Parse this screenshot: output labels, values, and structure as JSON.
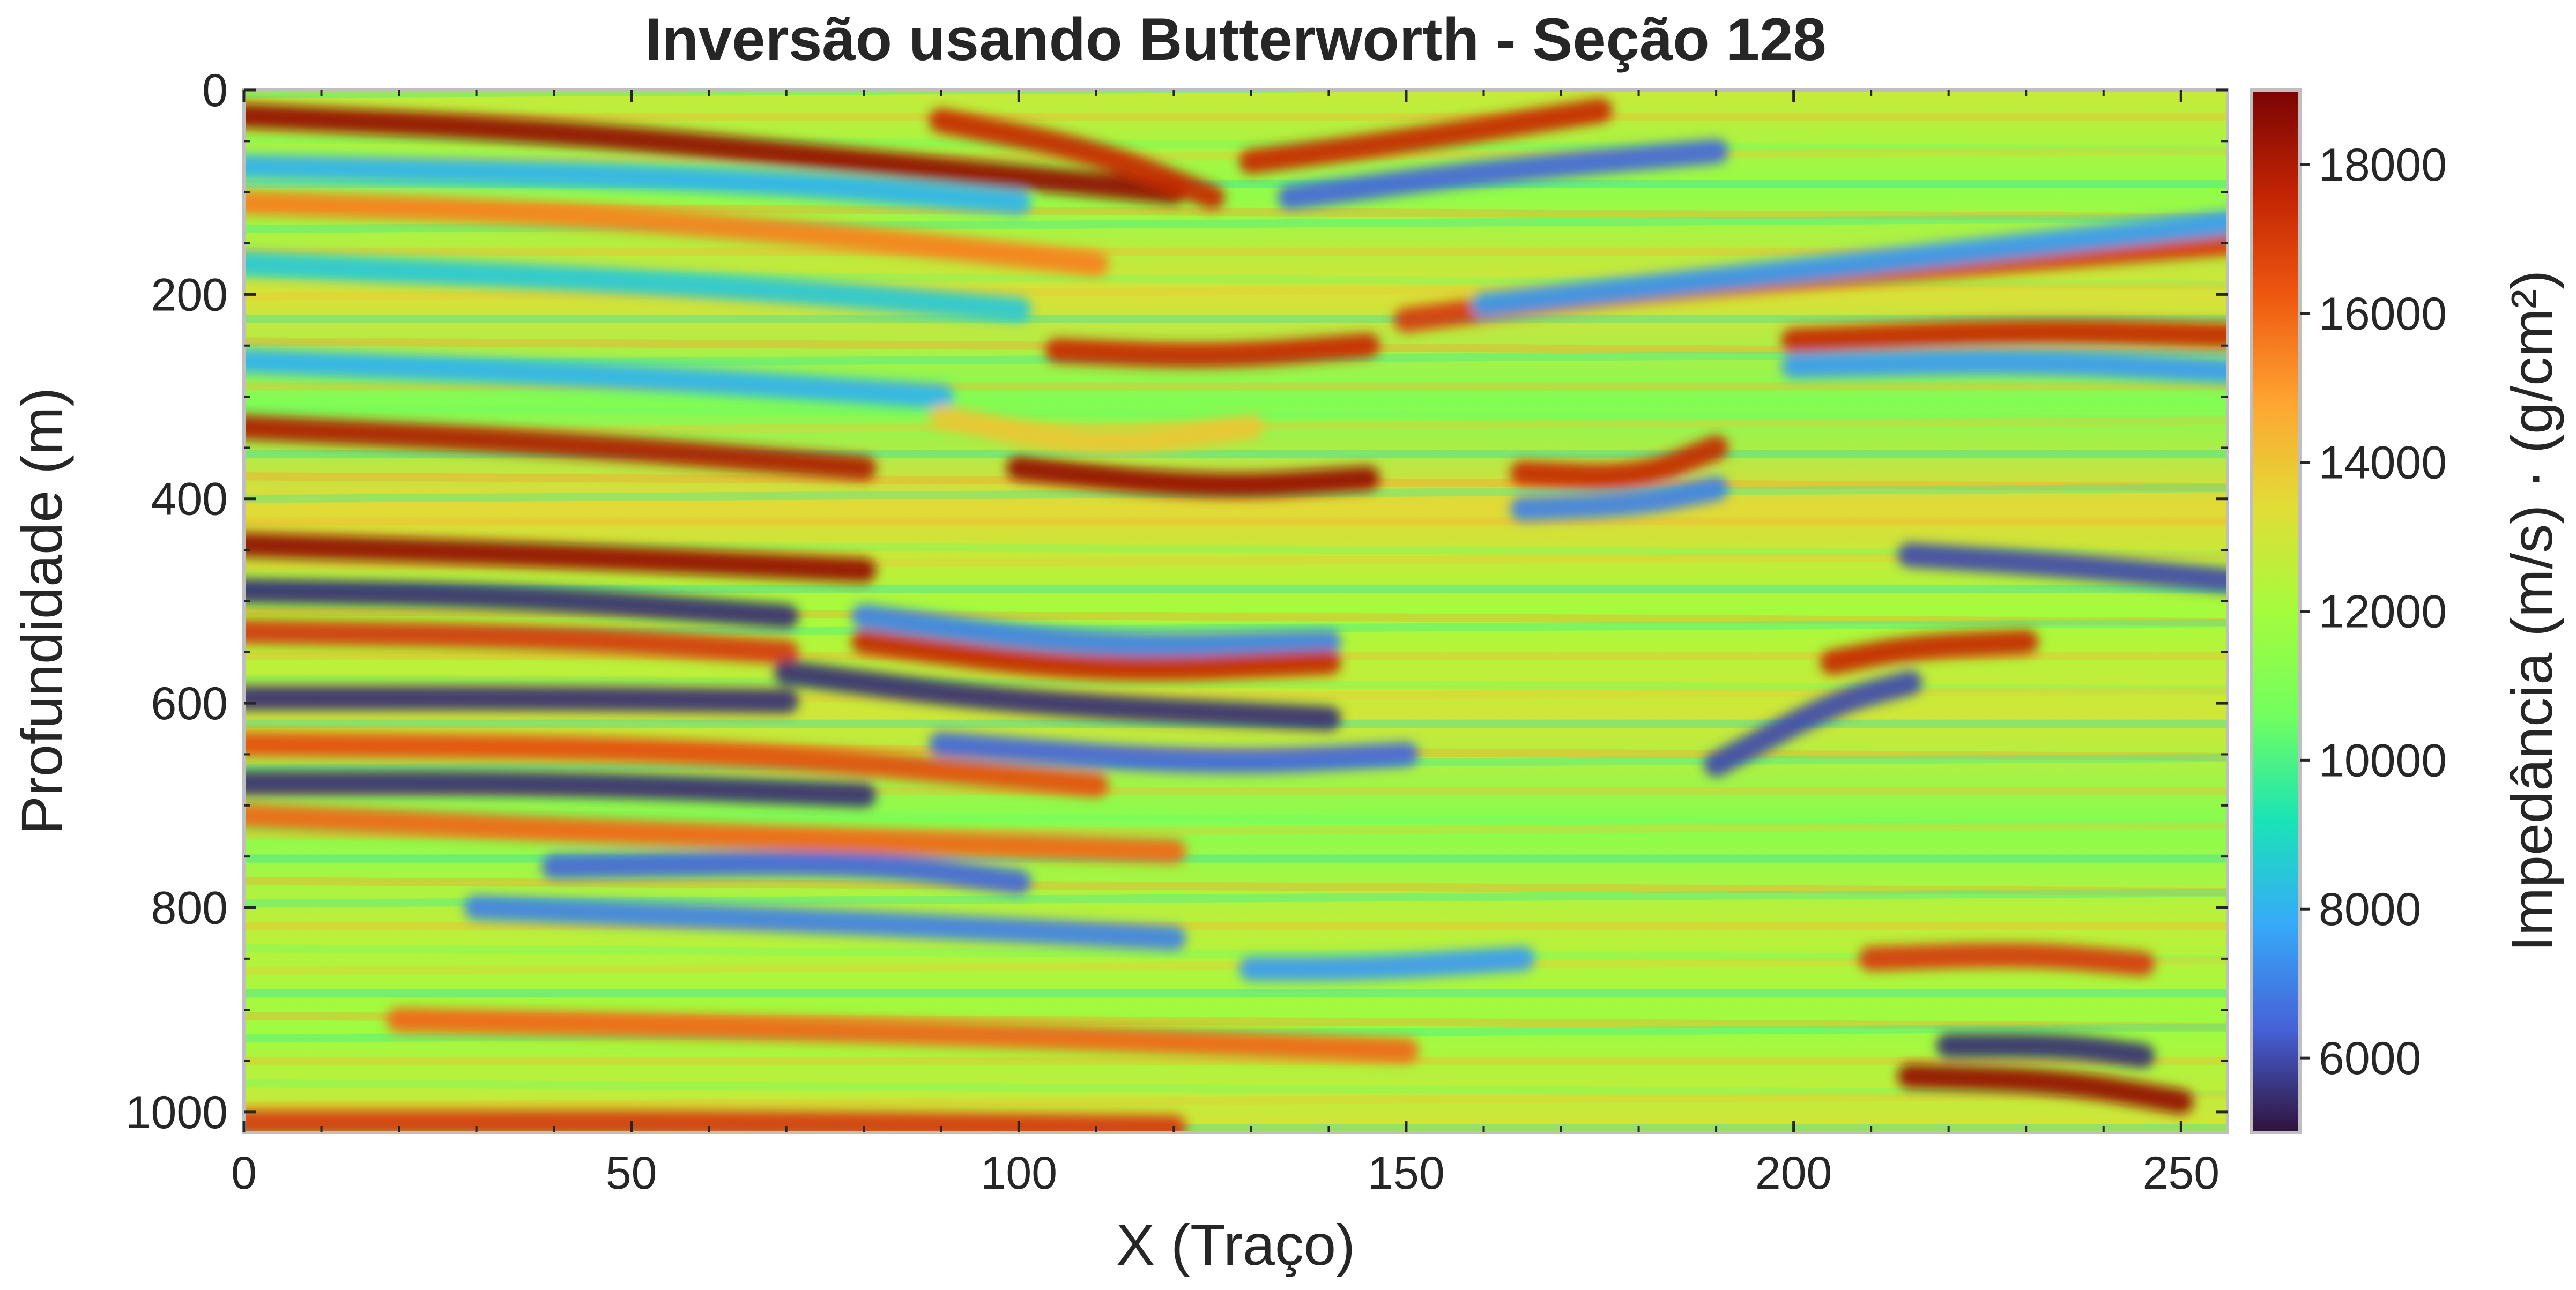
{
  "chart_data": {
    "type": "heatmap",
    "title": "Inversão usando Butterworth - Seção 128",
    "xlabel": "X (Traço)",
    "ylabel": "Profundidade (m)",
    "xlim": [
      0,
      256
    ],
    "ylim": [
      1020,
      0
    ],
    "x_ticks": [
      0,
      50,
      100,
      150,
      200,
      250
    ],
    "y_ticks": [
      0,
      200,
      400,
      600,
      800,
      1000
    ],
    "colorbar": {
      "label": "Impedância (m/s) · (g/cm²)",
      "min": 5000,
      "max": 19000,
      "ticks": [
        6000,
        8000,
        10000,
        12000,
        14000,
        16000,
        18000
      ],
      "colormap": "turbo"
    },
    "colors": {
      "low": "#30123b",
      "mid_low": "#28bceb",
      "mid": "#a4fc3c",
      "mid_high": "#fb8022",
      "high": "#7a0403",
      "axis_frame": "#bfbfbf"
    },
    "reflectors": [
      {
        "points": [
          [
            0,
            25
          ],
          [
            40,
            40
          ],
          [
            80,
            70
          ],
          [
            100,
            85
          ],
          [
            120,
            100
          ]
        ],
        "value": 18500
      },
      {
        "points": [
          [
            0,
            110
          ],
          [
            40,
            120
          ],
          [
            80,
            145
          ],
          [
            110,
            170
          ]
        ],
        "value": 15500
      },
      {
        "points": [
          [
            90,
            30
          ],
          [
            110,
            60
          ],
          [
            125,
            105
          ]
        ],
        "value": 17500
      },
      {
        "points": [
          [
            130,
            70
          ],
          [
            150,
            50
          ],
          [
            175,
            20
          ]
        ],
        "value": 17500
      },
      {
        "points": [
          [
            135,
            105
          ],
          [
            160,
            80
          ],
          [
            190,
            60
          ]
        ],
        "value": 6500
      },
      {
        "points": [
          [
            0,
            75
          ],
          [
            60,
            85
          ],
          [
            100,
            110
          ]
        ],
        "value": 8000
      },
      {
        "points": [
          [
            0,
            170
          ],
          [
            60,
            190
          ],
          [
            100,
            215
          ]
        ],
        "value": 8500
      },
      {
        "points": [
          [
            105,
            255
          ],
          [
            125,
            262
          ],
          [
            145,
            250
          ]
        ],
        "value": 17500
      },
      {
        "points": [
          [
            150,
            225
          ],
          [
            180,
            195
          ],
          [
            256,
            150
          ]
        ],
        "value": 17000
      },
      {
        "points": [
          [
            160,
            210
          ],
          [
            190,
            185
          ],
          [
            256,
            130
          ]
        ],
        "value": 7500
      },
      {
        "points": [
          [
            200,
            245
          ],
          [
            230,
            235
          ],
          [
            256,
            240
          ]
        ],
        "value": 17500
      },
      {
        "points": [
          [
            200,
            270
          ],
          [
            230,
            265
          ],
          [
            256,
            275
          ]
        ],
        "value": 7500
      },
      {
        "points": [
          [
            0,
            265
          ],
          [
            50,
            280
          ],
          [
            90,
            300
          ]
        ],
        "value": 8000
      },
      {
        "points": [
          [
            0,
            330
          ],
          [
            40,
            345
          ],
          [
            80,
            370
          ]
        ],
        "value": 18000
      },
      {
        "points": [
          [
            100,
            370
          ],
          [
            125,
            390
          ],
          [
            145,
            380
          ]
        ],
        "value": 18500
      },
      {
        "points": [
          [
            165,
            375
          ],
          [
            180,
            380
          ],
          [
            190,
            350
          ]
        ],
        "value": 17500
      },
      {
        "points": [
          [
            165,
            410
          ],
          [
            180,
            405
          ],
          [
            190,
            390
          ]
        ],
        "value": 7000
      },
      {
        "points": [
          [
            0,
            445
          ],
          [
            40,
            455
          ],
          [
            80,
            470
          ]
        ],
        "value": 18500
      },
      {
        "points": [
          [
            0,
            490
          ],
          [
            35,
            495
          ],
          [
            70,
            515
          ]
        ],
        "value": 5500
      },
      {
        "points": [
          [
            0,
            530
          ],
          [
            40,
            535
          ],
          [
            70,
            550
          ]
        ],
        "value": 17000
      },
      {
        "points": [
          [
            80,
            515
          ],
          [
            110,
            545
          ],
          [
            140,
            540
          ]
        ],
        "value": 7000
      },
      {
        "points": [
          [
            80,
            540
          ],
          [
            110,
            570
          ],
          [
            140,
            560
          ]
        ],
        "value": 17500
      },
      {
        "points": [
          [
            0,
            595
          ],
          [
            40,
            595
          ],
          [
            70,
            598
          ]
        ],
        "value": 5500
      },
      {
        "points": [
          [
            70,
            570
          ],
          [
            100,
            600
          ],
          [
            140,
            615
          ]
        ],
        "value": 5500
      },
      {
        "points": [
          [
            90,
            640
          ],
          [
            125,
            660
          ],
          [
            150,
            650
          ]
        ],
        "value": 6500
      },
      {
        "points": [
          [
            0,
            640
          ],
          [
            60,
            645
          ],
          [
            110,
            680
          ]
        ],
        "value": 16500
      },
      {
        "points": [
          [
            0,
            678
          ],
          [
            40,
            678
          ],
          [
            80,
            690
          ]
        ],
        "value": 5500
      },
      {
        "points": [
          [
            0,
            710
          ],
          [
            60,
            730
          ],
          [
            120,
            745
          ]
        ],
        "value": 16000
      },
      {
        "points": [
          [
            40,
            760
          ],
          [
            80,
            755
          ],
          [
            100,
            775
          ]
        ],
        "value": 6500
      },
      {
        "points": [
          [
            30,
            800
          ],
          [
            80,
            815
          ],
          [
            120,
            830
          ]
        ],
        "value": 7000
      },
      {
        "points": [
          [
            190,
            660
          ],
          [
            205,
            600
          ],
          [
            215,
            580
          ]
        ],
        "value": 6000
      },
      {
        "points": [
          [
            205,
            560
          ],
          [
            215,
            545
          ],
          [
            230,
            540
          ]
        ],
        "value": 17500
      },
      {
        "points": [
          [
            215,
            455
          ],
          [
            235,
            465
          ],
          [
            256,
            480
          ]
        ],
        "value": 6000
      },
      {
        "points": [
          [
            210,
            850
          ],
          [
            230,
            845
          ],
          [
            245,
            855
          ]
        ],
        "value": 17000
      },
      {
        "points": [
          [
            220,
            935
          ],
          [
            235,
            935
          ],
          [
            245,
            945
          ]
        ],
        "value": 5500
      },
      {
        "points": [
          [
            215,
            965
          ],
          [
            235,
            970
          ],
          [
            250,
            990
          ]
        ],
        "value": 18500
      },
      {
        "points": [
          [
            130,
            860
          ],
          [
            145,
            860
          ],
          [
            165,
            850
          ]
        ],
        "value": 7500
      },
      {
        "points": [
          [
            0,
            1010
          ],
          [
            60,
            1010
          ],
          [
            120,
            1015
          ]
        ],
        "value": 17000
      },
      {
        "points": [
          [
            20,
            910
          ],
          [
            80,
            920
          ],
          [
            150,
            940
          ]
        ],
        "value": 16000
      },
      {
        "points": [
          [
            90,
            320
          ],
          [
            110,
            350
          ],
          [
            130,
            330
          ]
        ],
        "value": 14000
      }
    ]
  }
}
